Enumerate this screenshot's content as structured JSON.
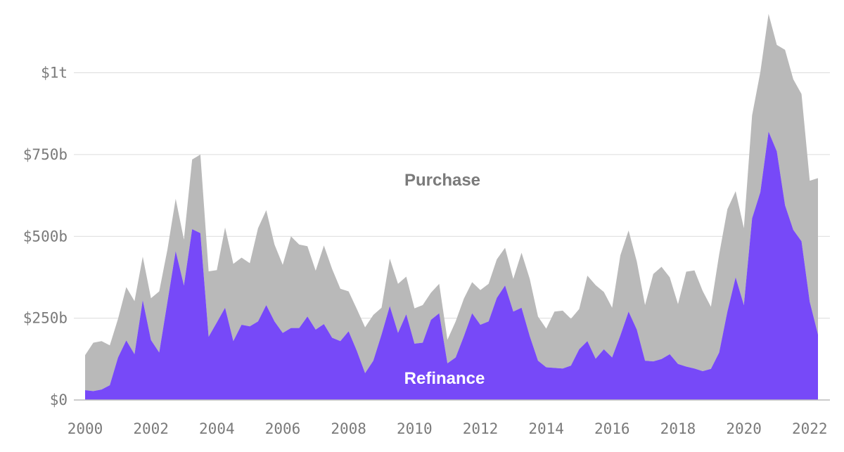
{
  "chart_data": {
    "type": "area",
    "stacked": true,
    "x": [
      2000.0,
      2000.25,
      2000.5,
      2000.75,
      2001.0,
      2001.25,
      2001.5,
      2001.75,
      2002.0,
      2002.25,
      2002.5,
      2002.75,
      2003.0,
      2003.25,
      2003.5,
      2003.75,
      2004.0,
      2004.25,
      2004.5,
      2004.75,
      2005.0,
      2005.25,
      2005.5,
      2005.75,
      2006.0,
      2006.25,
      2006.5,
      2006.75,
      2007.0,
      2007.25,
      2007.5,
      2007.75,
      2008.0,
      2008.25,
      2008.5,
      2008.75,
      2009.0,
      2009.25,
      2009.5,
      2009.75,
      2010.0,
      2010.25,
      2010.5,
      2010.75,
      2011.0,
      2011.25,
      2011.5,
      2011.75,
      2012.0,
      2012.25,
      2012.5,
      2012.75,
      2013.0,
      2013.25,
      2013.5,
      2013.75,
      2014.0,
      2014.25,
      2014.5,
      2014.75,
      2015.0,
      2015.25,
      2015.5,
      2015.75,
      2016.0,
      2016.25,
      2016.5,
      2016.75,
      2017.0,
      2017.25,
      2017.5,
      2017.75,
      2018.0,
      2018.25,
      2018.5,
      2018.75,
      2019.0,
      2019.25,
      2019.5,
      2019.75,
      2020.0,
      2020.25,
      2020.5,
      2020.75,
      2021.0,
      2021.25,
      2021.5,
      2021.75,
      2022.0,
      2022.25
    ],
    "series": [
      {
        "name": "Refinance",
        "color": "#7749f8",
        "values": [
          30,
          27,
          32,
          45,
          130,
          182,
          140,
          305,
          183,
          145,
          300,
          455,
          350,
          522,
          510,
          193,
          237,
          282,
          180,
          230,
          225,
          240,
          290,
          240,
          205,
          220,
          220,
          255,
          215,
          232,
          190,
          180,
          210,
          150,
          82,
          120,
          200,
          287,
          205,
          262,
          172,
          175,
          245,
          265,
          112,
          130,
          195,
          265,
          230,
          240,
          312,
          350,
          270,
          282,
          195,
          120,
          100,
          98,
          96,
          105,
          155,
          180,
          126,
          155,
          130,
          197,
          270,
          215,
          120,
          118,
          125,
          140,
          110,
          102,
          96,
          88,
          95,
          145,
          270,
          375,
          290,
          555,
          635,
          820,
          760,
          595,
          520,
          485,
          300,
          200
        ]
      },
      {
        "name": "Purchase",
        "color": "#b9b9b9",
        "values": [
          107,
          148,
          148,
          122,
          118,
          163,
          162,
          133,
          128,
          187,
          160,
          160,
          140,
          213,
          240,
          200,
          160,
          245,
          236,
          205,
          193,
          285,
          290,
          235,
          208,
          280,
          255,
          215,
          180,
          240,
          210,
          160,
          122,
          128,
          140,
          140,
          82,
          145,
          150,
          115,
          108,
          115,
          83,
          90,
          72,
          110,
          115,
          95,
          106,
          115,
          118,
          115,
          100,
          168,
          175,
          135,
          118,
          172,
          177,
          143,
          123,
          200,
          225,
          175,
          152,
          245,
          248,
          208,
          170,
          267,
          282,
          235,
          183,
          290,
          300,
          245,
          190,
          300,
          313,
          263,
          235,
          315,
          367,
          360,
          325,
          475,
          460,
          450,
          370,
          478
        ]
      }
    ],
    "y_ticks": [
      {
        "value": 0,
        "label": "$0"
      },
      {
        "value": 250,
        "label": "$250b"
      },
      {
        "value": 500,
        "label": "$500b"
      },
      {
        "value": 750,
        "label": "$750b"
      },
      {
        "value": 1000,
        "label": "$1t"
      }
    ],
    "x_ticks": [
      "2000",
      "2002",
      "2004",
      "2006",
      "2008",
      "2010",
      "2012",
      "2014",
      "2016",
      "2018",
      "2020",
      "2022"
    ],
    "ylim": [
      0,
      1200
    ],
    "xlim": [
      2000,
      2022.25
    ],
    "grid": true,
    "annotations": {
      "purchase_label": "Purchase",
      "refinance_label": "Refinance"
    }
  }
}
